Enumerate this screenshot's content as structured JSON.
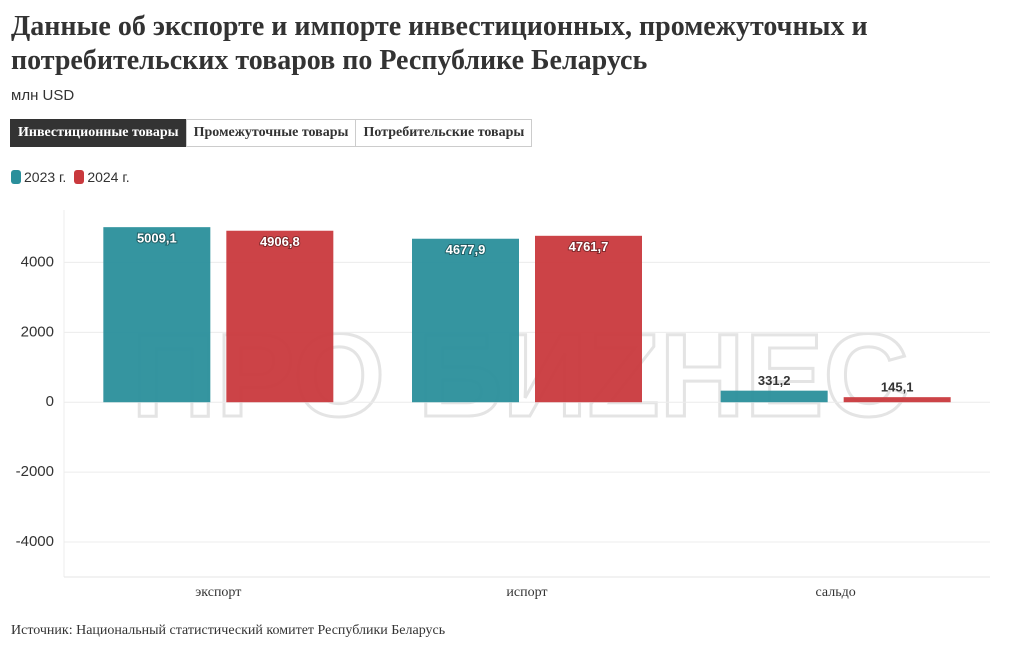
{
  "title": "Данные об экспорте и импорте инвестиционных, промежуточных и потребительских товаров по Республике Беларусь",
  "subtitle": "млн USD",
  "tabs": [
    "Инвестиционные товары",
    "Промежуточные товары",
    "Потребительские товары"
  ],
  "active_tab": 0,
  "source": "Источник: Национальный статистический комитет Республики Беларусь",
  "watermark": "ПРО БИZНЕС",
  "chart_data": {
    "type": "bar",
    "categories": [
      "экспорт",
      "испорт",
      "сальдо"
    ],
    "series": [
      {
        "name": "2023 г.",
        "color": "#2a8f9b",
        "values": [
          5009.1,
          4677.9,
          331.2
        ],
        "value_labels": [
          "5009,1",
          "4677,9",
          "331,2"
        ]
      },
      {
        "name": "2024 г.",
        "color": "#c9393d",
        "values": [
          4906.8,
          4761.7,
          145.1
        ],
        "value_labels": [
          "4906,8",
          "4761,7",
          "145,1"
        ]
      }
    ],
    "ylim": [
      -5000,
      5500
    ],
    "yticks": [
      -4000,
      -2000,
      0,
      2000,
      4000
    ],
    "grid": true
  }
}
